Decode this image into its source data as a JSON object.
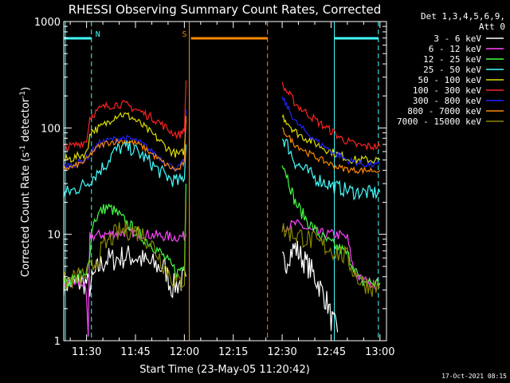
{
  "chart_data": {
    "type": "line",
    "title": "RHESSI Observing Summary Count Rates, Corrected",
    "xlabel": "Start Time (23-May-05 11:20:42)",
    "ylabel_main": "Corrected Count Rate (s",
    "ylabel_sup": "-1",
    "ylabel_tail": " detector",
    "ylabel_end": ")",
    "y_scale": "log",
    "ylim": [
      1,
      1000
    ],
    "xlim_minutes_from_1130": [
      -7,
      92
    ],
    "x_ticks": [
      {
        "t": 0,
        "label": "11:30"
      },
      {
        "t": 15,
        "label": "11:45"
      },
      {
        "t": 30,
        "label": "12:00"
      },
      {
        "t": 45,
        "label": "12:15"
      },
      {
        "t": 60,
        "label": "12:30"
      },
      {
        "t": 75,
        "label": "12:45"
      },
      {
        "t": 90,
        "label": "13:00"
      }
    ],
    "y_ticks": [
      {
        "v": 1,
        "label": "1"
      },
      {
        "v": 10,
        "label": "10"
      },
      {
        "v": 100,
        "label": "100"
      },
      {
        "v": 1000,
        "label": "1000"
      }
    ],
    "legend_header": [
      "Det 1,3,4,5,6,9,",
      "Att 0"
    ],
    "legend_position": "right",
    "series": [
      {
        "name": "3 - 6 keV",
        "color": "#ffffff",
        "segments": [
          {
            "t": [
              -7,
              0,
              1,
              2,
              3,
              4,
              6,
              8,
              10,
              12,
              14,
              16,
              18,
              20,
              22,
              24,
              26,
              28,
              29,
              30,
              30.5
            ],
            "v": [
              3.5,
              3.5,
              3.2,
              3.8,
              4.5,
              5,
              5.8,
              5.8,
              6,
              6.2,
              6.2,
              6,
              5.5,
              5.2,
              5,
              4.8,
              3.2,
              3.4,
              3.6,
              3.8,
              4
            ]
          },
          {
            "t": [
              60,
              61,
              62,
              63,
              64,
              65,
              66,
              67,
              68,
              69,
              70,
              71,
              72,
              73,
              74,
              75,
              76,
              77
            ],
            "v": [
              5.5,
              5.2,
              6.5,
              7,
              7.5,
              6.8,
              6,
              5.5,
              5,
              4.5,
              4,
              3.5,
              3,
              2.6,
              2.2,
              1.6,
              1.4,
              1.2
            ]
          }
        ]
      },
      {
        "name": "6 - 12 keV",
        "color": "#ff44ff",
        "segments": [
          {
            "t": [
              -7,
              -1,
              0,
              0.5,
              1,
              3,
              6,
              9,
              12,
              15,
              18,
              21,
              24,
              27,
              29,
              30,
              30.5
            ],
            "v": [
              3.5,
              3.5,
              2.5,
              1,
              9.5,
              9.8,
              10,
              10.2,
              10.5,
              10.4,
              10,
              9.8,
              9.6,
              9.4,
              9.5,
              9.6,
              10
            ]
          },
          {
            "t": [
              60,
              62,
              64,
              66,
              68,
              70,
              72,
              74,
              76,
              78,
              80,
              82,
              84,
              86,
              88,
              90
            ],
            "v": [
              12,
              12,
              12.5,
              12,
              11,
              10.5,
              10.2,
              10,
              10,
              9.8,
              9.2,
              4.5,
              3.8,
              3.6,
              3.5,
              3.5
            ]
          }
        ]
      },
      {
        "name": "12 - 25 keV",
        "color": "#44ff44",
        "segments": [
          {
            "t": [
              -7,
              -4,
              -2,
              0,
              2,
              4,
              6,
              8,
              10,
              12,
              14,
              16,
              18,
              20,
              22,
              24,
              26,
              28,
              29,
              30,
              30.5
            ],
            "v": [
              3.5,
              3.8,
              4,
              3.9,
              13,
              16,
              18,
              17,
              15,
              13,
              11.5,
              10,
              9,
              8,
              7,
              6,
              5,
              4.4,
              4.8,
              5,
              30
            ]
          },
          {
            "t": [
              60,
              61,
              62,
              63,
              64,
              66,
              68,
              70,
              72,
              74,
              76,
              78,
              80,
              82,
              84,
              86,
              88,
              90
            ],
            "v": [
              50,
              40,
              32,
              25,
              20,
              16,
              13,
              11,
              9.5,
              8.5,
              7.8,
              7.2,
              6.5,
              5,
              3.5,
              3.6,
              3.5,
              3.5
            ]
          }
        ]
      },
      {
        "name": "25 - 50 keV",
        "color": "#44ffff",
        "segments": [
          {
            "t": [
              -7,
              -4,
              -2,
              0,
              2,
              4,
              6,
              8,
              10,
              12,
              14,
              16,
              18,
              20,
              22,
              24,
              26,
              28,
              29,
              30,
              30.5
            ],
            "v": [
              24,
              26,
              28,
              30,
              35,
              40,
              46,
              58,
              64,
              66,
              64,
              58,
              52,
              46,
              40,
              36,
              33,
              31,
              32,
              36,
              70
            ]
          },
          {
            "t": [
              60,
              61,
              62,
              63,
              64,
              66,
              68,
              70,
              72,
              74,
              76,
              78,
              80,
              82,
              84,
              86,
              88,
              90
            ],
            "v": [
              80,
              75,
              65,
              55,
              48,
              42,
              38,
              34,
              32,
              30,
              28,
              27,
              26,
              25,
              25,
              24.5,
              24.5,
              25
            ]
          }
        ]
      },
      {
        "name": "50 - 100 keV",
        "color": "#dddd00",
        "segments": [
          {
            "t": [
              -7,
              -4,
              -2,
              0,
              0.5,
              1,
              2,
              4,
              6,
              8,
              10,
              12,
              14,
              16,
              18,
              20,
              22,
              24,
              26,
              28,
              29,
              30,
              30.5
            ],
            "v": [
              50,
              52,
              55,
              58,
              65,
              92,
              95,
              100,
              110,
              125,
              135,
              132,
              125,
              112,
              100,
              88,
              78,
              68,
              60,
              56,
              57,
              62,
              120
            ]
          },
          {
            "t": [
              60,
              61,
              62,
              63,
              64,
              66,
              68,
              70,
              72,
              74,
              76,
              78,
              80,
              82,
              84,
              86,
              88,
              90
            ],
            "v": [
              130,
              120,
              110,
              100,
              92,
              84,
              78,
              72,
              67,
              62,
              58,
              55,
              52,
              50,
              50,
              50,
              50,
              50
            ]
          }
        ]
      },
      {
        "name": "100 - 300 keV",
        "color": "#ff2222",
        "segments": [
          {
            "t": [
              -7,
              -4,
              -2,
              0,
              0.5,
              1,
              2,
              4,
              6,
              8,
              10,
              12,
              14,
              16,
              18,
              20,
              22,
              24,
              26,
              28,
              29,
              30,
              30.5
            ],
            "v": [
              65,
              68,
              72,
              75,
              100,
              125,
              135,
              150,
              160,
              165,
              168,
              165,
              155,
              145,
              135,
              125,
              115,
              102,
              92,
              86,
              88,
              100,
              280
            ]
          },
          {
            "t": [
              60,
              61,
              62,
              63,
              64,
              66,
              68,
              70,
              72,
              74,
              76,
              78,
              80,
              82,
              84,
              86,
              88,
              90
            ],
            "v": [
              250,
              230,
              210,
              190,
              170,
              150,
              135,
              120,
              108,
              98,
              90,
              80,
              75,
              70,
              68,
              67,
              67,
              67
            ]
          }
        ]
      },
      {
        "name": "300 - 800 keV",
        "color": "#2222ff",
        "segments": [
          {
            "t": [
              -7,
              -4,
              -2,
              0,
              2,
              4,
              6,
              8,
              10,
              12,
              14,
              16,
              18,
              20,
              22,
              24,
              26,
              28,
              29,
              30,
              30.5
            ],
            "v": [
              44,
              45,
              48,
              52,
              62,
              72,
              76,
              78,
              80,
              80,
              78,
              74,
              68,
              60,
              54,
              48,
              44,
              42,
              45,
              50,
              150
            ]
          },
          {
            "t": [
              60,
              61,
              62,
              63,
              64,
              66,
              68,
              70,
              72,
              74,
              76,
              78,
              80,
              82,
              84,
              86,
              88,
              90
            ],
            "v": [
              190,
              170,
              150,
              130,
              115,
              100,
              88,
              78,
              70,
              64,
              58,
              54,
              50,
              48,
              46,
              45,
              45,
              45
            ]
          }
        ]
      },
      {
        "name": "800 - 7000 keV",
        "color": "#ff8800",
        "segments": [
          {
            "t": [
              -7,
              -4,
              -2,
              0,
              2,
              4,
              6,
              8,
              10,
              12,
              14,
              16,
              18,
              20,
              22,
              24,
              26,
              28,
              29,
              30,
              30.5
            ],
            "v": [
              42,
              43,
              46,
              50,
              60,
              68,
              72,
              74,
              75,
              75,
              73,
              70,
              64,
              57,
              51,
              46,
              42,
              40,
              43,
              48,
              130
            ]
          },
          {
            "t": [
              60,
              61,
              62,
              63,
              64,
              66,
              68,
              70,
              72,
              74,
              76,
              78,
              80,
              82,
              84,
              86,
              88,
              90
            ],
            "v": [
              95,
              90,
              82,
              75,
              70,
              64,
              58,
              54,
              50,
              47,
              44,
              42,
              41,
              40,
              40,
              40,
              40,
              40
            ]
          }
        ]
      },
      {
        "name": "7000 - 15000 keV",
        "color": "#888800",
        "segments": [
          {
            "t": [
              -7,
              -4,
              -2,
              0,
              2,
              4,
              6,
              8,
              10,
              12,
              14,
              16,
              18,
              20,
              22,
              24,
              26,
              28,
              29,
              30,
              30.5
            ],
            "v": [
              3.5,
              3.8,
              4,
              4.2,
              5,
              6.5,
              8,
              9.5,
              10.5,
              11,
              11,
              10.5,
              9.5,
              8,
              6.5,
              5,
              4,
              3.5,
              3.6,
              3.8,
              20
            ]
          },
          {
            "t": [
              60,
              62,
              64,
              66,
              68,
              70,
              72,
              74,
              76,
              78,
              80,
              82,
              84,
              86,
              88,
              90
            ],
            "v": [
              11,
              10.5,
              10,
              9.5,
              9,
              8.5,
              8,
              7.5,
              7,
              6.5,
              6,
              4.5,
              3.6,
              3.4,
              3.2,
              3.2
            ]
          }
        ]
      }
    ],
    "annotations": [
      {
        "label": "N",
        "color": "#44ffff",
        "bar_t": [
          -7,
          1.5
        ],
        "dash_t": 1.5,
        "solid_t": -6.5
      },
      {
        "label": "",
        "color": "#44ffff",
        "bar_t": [
          76,
          89.5
        ],
        "dash_t": 89.5,
        "solid_t": 76
      },
      {
        "label": "S",
        "color": "#ff8800",
        "bar_t": [
          32,
          55.5
        ],
        "dash_t": 55.5,
        "solid_t": 31.5
      }
    ],
    "footer_date": "17-Oct-2021 08:15"
  }
}
